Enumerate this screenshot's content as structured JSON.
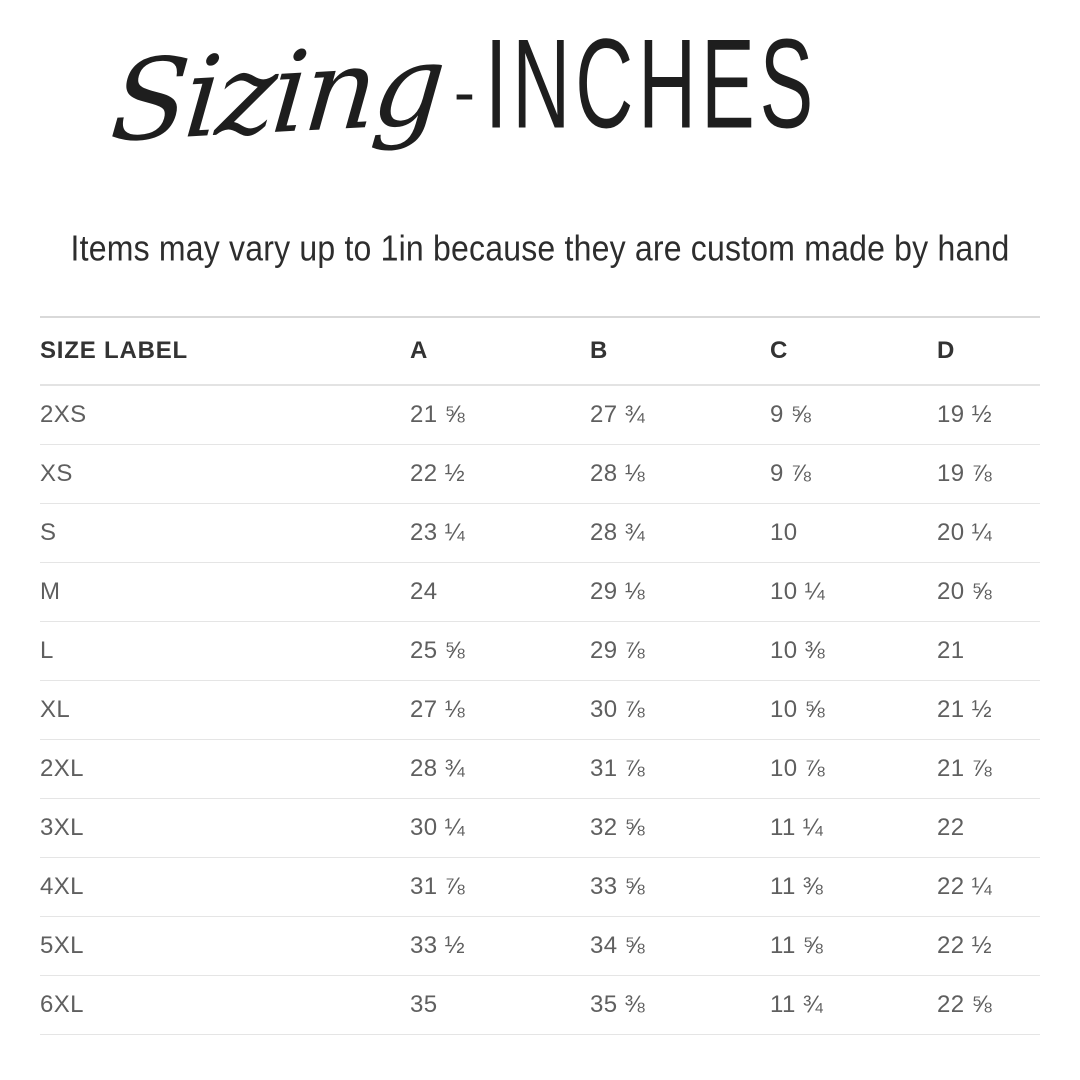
{
  "header": {
    "title_script": "Sizing",
    "title_separator": "-",
    "title_main": "INCHES",
    "subtitle": "Items may vary up to 1in because they are custom made by hand"
  },
  "chart_data": {
    "type": "table",
    "title": "Sizing - INCHES",
    "subtitle": "Items may vary up to 1in because they are custom made by hand",
    "columns": [
      "SIZE LABEL",
      "A",
      "B",
      "C",
      "D"
    ],
    "rows": [
      [
        "2XS",
        "21 ⅝",
        "27 ¾",
        "9 ⅝",
        "19 ½"
      ],
      [
        "XS",
        "22 ½",
        "28 ⅛",
        "9 ⅞",
        "19 ⅞"
      ],
      [
        "S",
        "23 ¼",
        "28 ¾",
        "10",
        "20 ¼"
      ],
      [
        "M",
        "24",
        "29 ⅛",
        "10 ¼",
        "20 ⅝"
      ],
      [
        "L",
        "25 ⅝",
        "29 ⅞",
        "10 ⅜",
        "21"
      ],
      [
        "XL",
        "27 ⅛",
        "30 ⅞",
        "10 ⅝",
        "21 ½"
      ],
      [
        "2XL",
        "28 ¾",
        "31 ⅞",
        "10 ⅞",
        "21 ⅞"
      ],
      [
        "3XL",
        "30 ¼",
        "32 ⅝",
        "11 ¼",
        "22"
      ],
      [
        "4XL",
        "31 ⅞",
        "33 ⅝",
        "11 ⅜",
        "22 ¼"
      ],
      [
        "5XL",
        "33 ½",
        "34 ⅝",
        "11 ⅝",
        "22 ½"
      ],
      [
        "6XL",
        "35",
        "35 ⅜",
        "11 ¾",
        "22 ⅝"
      ]
    ]
  },
  "colors": {
    "background": "#ffffff",
    "title_text": "#1e1e1e",
    "subtitle_text": "#2d2d2d",
    "header_text": "#333333",
    "cell_text": "#5f5f5f",
    "divider": "#e5e5e5",
    "table_top_border": "#d9d9d9"
  }
}
